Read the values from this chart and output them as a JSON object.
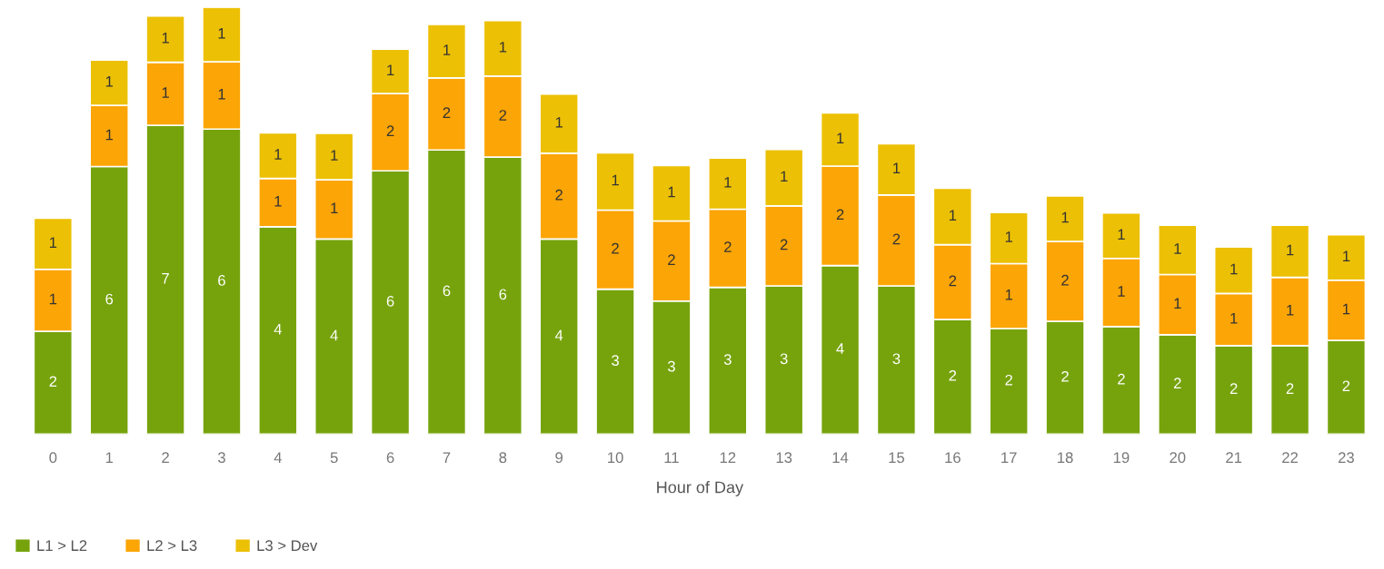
{
  "chart_data": {
    "type": "bar",
    "stacked": true,
    "xlabel": "Hour of Day",
    "legend": "bottom left",
    "categories": [
      "0",
      "1",
      "2",
      "3",
      "4",
      "5",
      "6",
      "7",
      "8",
      "9",
      "10",
      "11",
      "12",
      "13",
      "14",
      "15",
      "16",
      "17",
      "18",
      "19",
      "20",
      "21",
      "22",
      "23"
    ],
    "series": [
      {
        "name": "L1 > L2",
        "color": "#76a30c",
        "values": [
          2.17,
          5.65,
          6.52,
          6.44,
          4.38,
          4.12,
          5.56,
          6.0,
          5.85,
          4.12,
          3.06,
          2.81,
          3.1,
          3.13,
          3.56,
          3.13,
          2.42,
          2.23,
          2.38,
          2.27,
          2.1,
          1.87,
          1.87,
          1.98
        ],
        "value_labels": [
          "2",
          "6",
          "7",
          "6",
          "4",
          "4",
          "6",
          "6",
          "6",
          "4",
          "3",
          "3",
          "3",
          "3",
          "4",
          "3",
          "2",
          "2",
          "2",
          "2",
          "2",
          "2",
          "2",
          "2"
        ]
      },
      {
        "name": "L2 > L3",
        "color": "#fca506",
        "values": [
          1.31,
          1.29,
          1.33,
          1.42,
          1.02,
          1.25,
          1.63,
          1.52,
          1.71,
          1.81,
          1.67,
          1.69,
          1.65,
          1.69,
          2.1,
          1.92,
          1.58,
          1.37,
          1.69,
          1.44,
          1.27,
          1.1,
          1.44,
          1.27
        ],
        "value_labels": [
          "1",
          "1",
          "1",
          "1",
          "1",
          "1",
          "2",
          "2",
          "2",
          "2",
          "2",
          "2",
          "2",
          "2",
          "2",
          "2",
          "2",
          "1",
          "2",
          "1",
          "1",
          "1",
          "1",
          "1"
        ]
      },
      {
        "name": "L3 > Dev",
        "color": "#ecc004",
        "values": [
          1.08,
          0.96,
          0.98,
          1.15,
          0.96,
          0.98,
          0.94,
          1.13,
          1.17,
          1.25,
          1.21,
          1.17,
          1.08,
          1.19,
          1.12,
          1.08,
          1.19,
          1.08,
          0.96,
          0.96,
          1.04,
          0.98,
          1.1,
          0.96
        ],
        "value_labels": [
          "1",
          "1",
          "1",
          "1",
          "1",
          "1",
          "1",
          "1",
          "1",
          "1",
          "1",
          "1",
          "1",
          "1",
          "1",
          "1",
          "1",
          "1",
          "1",
          "1",
          "1",
          "1",
          "1",
          "1"
        ]
      }
    ]
  }
}
